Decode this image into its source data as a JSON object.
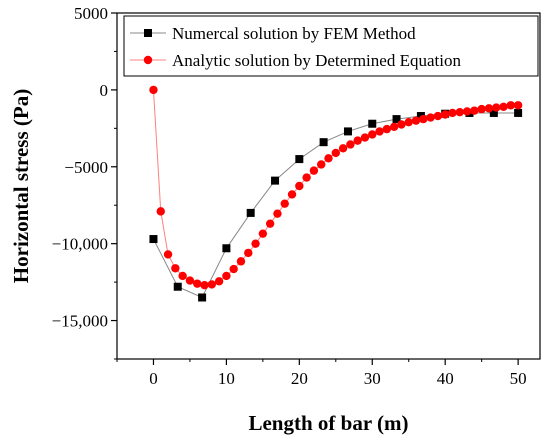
{
  "chart_data": {
    "type": "line",
    "title": "",
    "xlabel": "Length of bar (m)",
    "ylabel": "Horizontal stress (Pa)",
    "xlim": [
      -5,
      53
    ],
    "ylim": [
      -17500,
      5000
    ],
    "x_ticks": [
      0,
      10,
      20,
      30,
      40,
      50
    ],
    "x_tick_labels": [
      "0",
      "10",
      "20",
      "30",
      "40",
      "50"
    ],
    "y_ticks": [
      5000,
      0,
      -5000,
      -10000,
      -15000
    ],
    "y_tick_labels": [
      "5000",
      "0",
      "−5000",
      "−10,000",
      "−15,000"
    ],
    "grid": false,
    "legend_position": "top-right",
    "series": [
      {
        "name": "Numercal solution by FEM Method",
        "marker": "square",
        "marker_color": "#000000",
        "line_color": "#888888",
        "x": [
          0,
          3.33,
          6.67,
          10,
          13.33,
          16.67,
          20,
          23.33,
          26.67,
          30,
          33.33,
          36.67,
          40,
          43.33,
          46.67,
          50
        ],
        "y": [
          -9700,
          -12800,
          -13500,
          -10300,
          -8000,
          -5900,
          -4500,
          -3400,
          -2700,
          -2200,
          -1900,
          -1700,
          -1550,
          -1500,
          -1500,
          -1500
        ]
      },
      {
        "name": "Analytic solution by Determined Equation",
        "marker": "circle",
        "marker_color": "#ff0000",
        "line_color": "#ff8080",
        "x": [
          0,
          1,
          2,
          3,
          4,
          5,
          6,
          7,
          8,
          9,
          10,
          11,
          12,
          13,
          14,
          15,
          16,
          17,
          18,
          19,
          20,
          21,
          22,
          23,
          24,
          25,
          26,
          27,
          28,
          29,
          30,
          31,
          32,
          33,
          34,
          35,
          36,
          37,
          38,
          39,
          40,
          41,
          42,
          43,
          44,
          45,
          46,
          47,
          48,
          49,
          50
        ],
        "y": [
          0,
          -7900,
          -10700,
          -11600,
          -12100,
          -12400,
          -12600,
          -12700,
          -12650,
          -12450,
          -12100,
          -11650,
          -11150,
          -10600,
          -10000,
          -9350,
          -8700,
          -8050,
          -7400,
          -6800,
          -6250,
          -5700,
          -5250,
          -4850,
          -4450,
          -4100,
          -3800,
          -3550,
          -3300,
          -3100,
          -2900,
          -2700,
          -2550,
          -2400,
          -2250,
          -2100,
          -2000,
          -1900,
          -1800,
          -1700,
          -1600,
          -1500,
          -1450,
          -1400,
          -1350,
          -1250,
          -1200,
          -1150,
          -1100,
          -1000,
          -1000
        ]
      }
    ]
  }
}
